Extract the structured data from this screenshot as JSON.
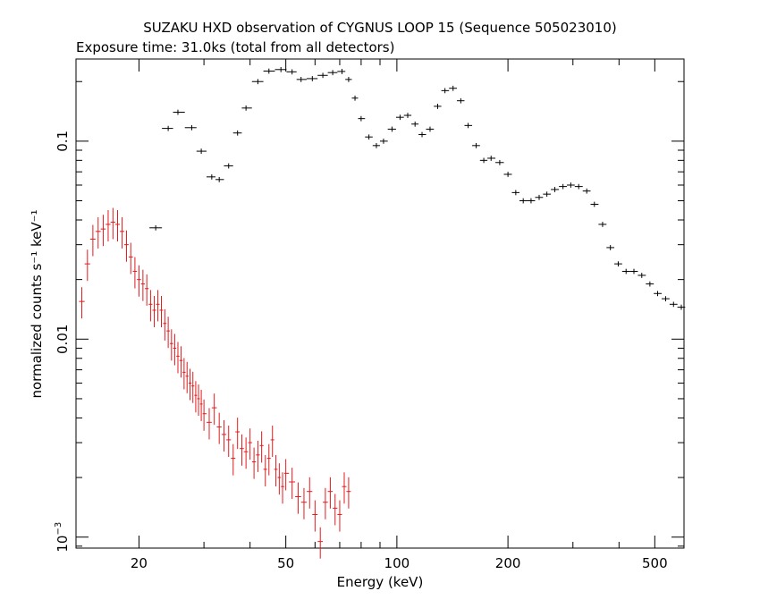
{
  "chart_data": {
    "type": "scatter",
    "title": "SUZAKU HXD observation of CYGNUS LOOP 15 (Sequence 505023010)",
    "subtitle": "Exposure time: 31.0ks (total from all detectors)",
    "xlabel": "Energy (keV)",
    "ylabel": "normalized counts s⁻¹ keV⁻¹",
    "xscale": "log",
    "yscale": "log",
    "xlim": [
      13.5,
      600
    ],
    "ylim": [
      0.00088,
      0.26
    ],
    "xticks": [
      {
        "value": 20,
        "label": "20"
      },
      {
        "value": 50,
        "label": "50"
      },
      {
        "value": 100,
        "label": "100"
      },
      {
        "value": 200,
        "label": "200"
      },
      {
        "value": 500,
        "label": "500"
      }
    ],
    "yticks": [
      {
        "value": 0.001,
        "label": "10",
        "sup": "−3"
      },
      {
        "value": 0.01,
        "label": "0.01",
        "sup": ""
      },
      {
        "value": 0.1,
        "label": "0.1",
        "sup": ""
      }
    ],
    "grid": false,
    "series": [
      {
        "color": "#000000",
        "x": [
          22.2,
          24,
          25.5,
          27.8,
          29.5,
          31.5,
          33,
          35,
          37,
          39,
          42,
          45,
          48.5,
          52,
          55,
          59,
          63,
          67,
          71,
          74,
          77,
          80,
          84,
          88,
          92,
          97,
          102,
          107,
          112,
          117,
          123,
          129,
          135,
          142,
          149,
          156,
          164,
          172,
          180,
          190,
          200,
          210,
          220,
          231,
          243,
          255,
          268,
          282,
          296,
          311,
          327,
          343,
          361,
          379,
          398,
          418,
          439,
          461,
          485,
          509,
          535,
          562,
          590
        ],
        "y": [
          0.0365,
          0.116,
          0.14,
          0.117,
          0.089,
          0.066,
          0.064,
          0.075,
          0.11,
          0.147,
          0.2,
          0.226,
          0.23,
          0.224,
          0.205,
          0.207,
          0.215,
          0.222,
          0.225,
          0.205,
          0.165,
          0.13,
          0.105,
          0.095,
          0.1,
          0.115,
          0.132,
          0.135,
          0.122,
          0.108,
          0.115,
          0.15,
          0.18,
          0.185,
          0.16,
          0.12,
          0.095,
          0.08,
          0.082,
          0.078,
          0.068,
          0.055,
          0.05,
          0.05,
          0.052,
          0.054,
          0.057,
          0.059,
          0.06,
          0.059,
          0.056,
          0.048,
          0.038,
          0.029,
          0.024,
          0.022,
          0.022,
          0.021,
          0.019,
          0.017,
          0.016,
          0.015,
          0.0145
        ]
      },
      {
        "color": "#e41a1c",
        "x": [
          14,
          14.5,
          15,
          15.5,
          16,
          16.5,
          17,
          17.5,
          18,
          18.5,
          19,
          19.5,
          20,
          20.5,
          21,
          21.5,
          22,
          22.5,
          23,
          23.5,
          24,
          24.5,
          25,
          25.5,
          26,
          26.5,
          27,
          27.5,
          28,
          28.5,
          29,
          29.5,
          30,
          31,
          32,
          33,
          34,
          35,
          36,
          37,
          38,
          39,
          40,
          41,
          42,
          43,
          44,
          45,
          46,
          47,
          48,
          49,
          50,
          52,
          54,
          56,
          58,
          60,
          62,
          64,
          66,
          68,
          70,
          72,
          74
        ],
        "y": [
          0.0155,
          0.024,
          0.032,
          0.035,
          0.036,
          0.038,
          0.039,
          0.038,
          0.035,
          0.03,
          0.026,
          0.022,
          0.02,
          0.019,
          0.018,
          0.015,
          0.014,
          0.015,
          0.014,
          0.012,
          0.011,
          0.0095,
          0.009,
          0.0082,
          0.0078,
          0.0068,
          0.0065,
          0.006,
          0.0058,
          0.0052,
          0.005,
          0.0047,
          0.0042,
          0.0038,
          0.0045,
          0.0036,
          0.0033,
          0.0031,
          0.0025,
          0.0034,
          0.0028,
          0.0027,
          0.003,
          0.0024,
          0.0026,
          0.0029,
          0.0022,
          0.0025,
          0.0031,
          0.0022,
          0.002,
          0.0018,
          0.0021,
          0.0019,
          0.0016,
          0.0015,
          0.0017,
          0.0013,
          0.00095,
          0.0015,
          0.0017,
          0.0014,
          0.0013,
          0.0018,
          0.0017
        ],
        "yerr_frac": 0.18
      }
    ]
  }
}
